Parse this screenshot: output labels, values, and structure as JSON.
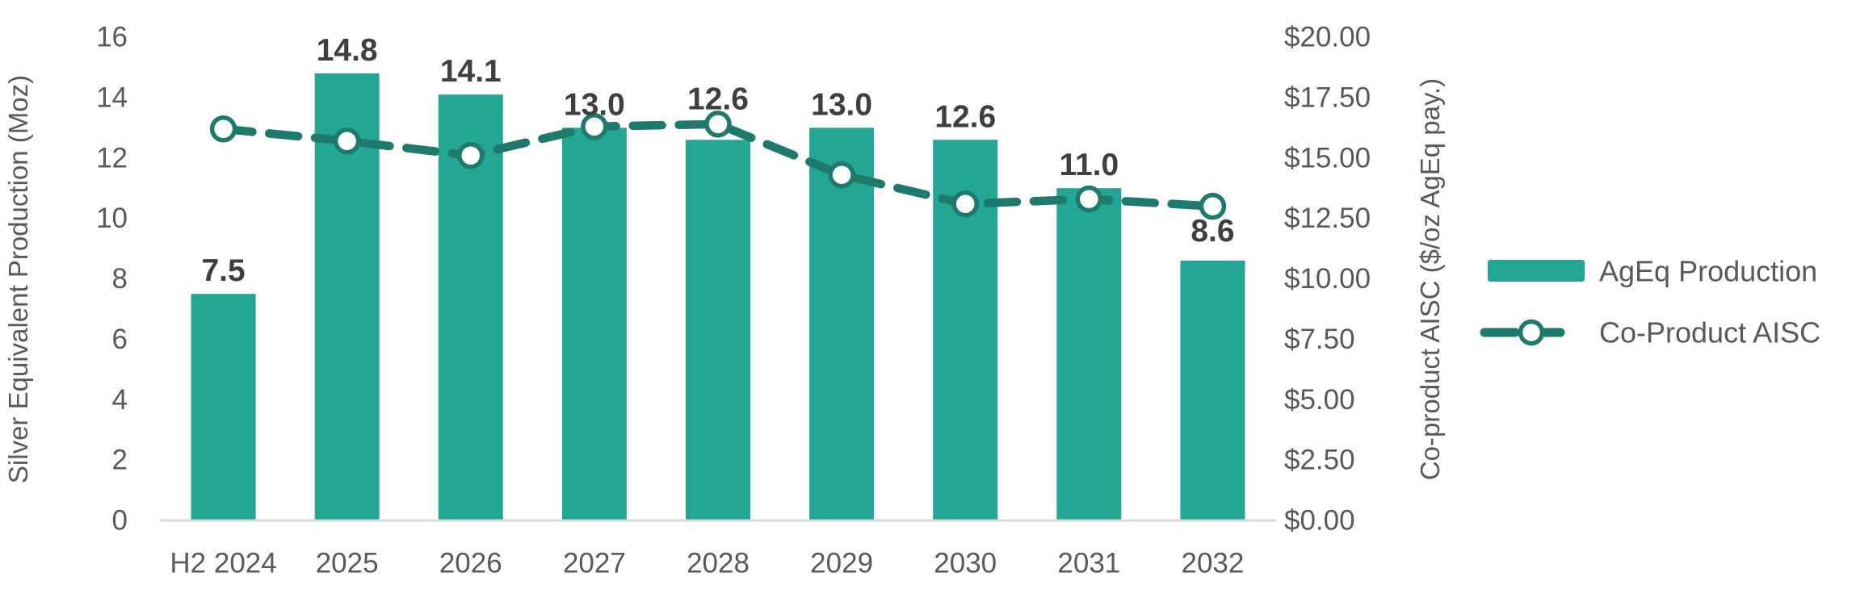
{
  "chart_data": {
    "type": "combo",
    "title": "",
    "categories": [
      "H2 2024",
      "2025",
      "2026",
      "2027",
      "2028",
      "2029",
      "2030",
      "2031",
      "2032"
    ],
    "series": [
      {
        "name": "AgEq Production",
        "type": "bar",
        "axis": "left",
        "values": [
          7.5,
          14.8,
          14.1,
          13.0,
          12.6,
          13.0,
          12.6,
          11.0,
          8.6
        ],
        "data_labels": [
          "7.5",
          "14.8",
          "14.1",
          "13.0",
          "12.6",
          "13.0",
          "12.6",
          "11.0",
          "8.6"
        ],
        "color": "#23A794"
      },
      {
        "name": "Co-Product AISC",
        "type": "line",
        "axis": "right",
        "line_style": "dashed",
        "marker": "open-circle-white",
        "values": [
          16.2,
          15.7,
          15.1,
          16.3,
          16.4,
          14.3,
          13.1,
          13.3,
          13.0
        ],
        "color": "#1D7A6C"
      }
    ],
    "x_axis": {
      "tick_labels": [
        "H2 2024",
        "2025",
        "2026",
        "2027",
        "2028",
        "2029",
        "2030",
        "2031",
        "2032"
      ]
    },
    "left_axis": {
      "title": "Silver Equivalent Production (Moz)",
      "min": 0,
      "max": 16,
      "step": 2,
      "tick_labels": [
        "0",
        "2",
        "4",
        "6",
        "8",
        "10",
        "12",
        "14",
        "16"
      ]
    },
    "right_axis": {
      "title": "Co-product AISC ($/oz AgEq pay.)",
      "min": 0,
      "max": 20,
      "step": 2.5,
      "tick_labels": [
        "$0.00",
        "$2.50",
        "$5.00",
        "$7.50",
        "$10.00",
        "$12.50",
        "$15.00",
        "$17.50",
        "$20.00"
      ]
    },
    "legend": {
      "position": "right",
      "items": [
        {
          "label": "AgEq Production",
          "swatch": "bar"
        },
        {
          "label": "Co-Product AISC",
          "swatch": "dashed-line-open-circle"
        }
      ]
    },
    "grid": false,
    "colors": {
      "bar": "#23A794",
      "line": "#1D7A6C",
      "marker_fill": "#FFFFFF",
      "value_label": "#3F3F3F",
      "axis_text": "#595959",
      "axis_line": "#D9D9D9",
      "background": "#FFFFFF"
    }
  }
}
